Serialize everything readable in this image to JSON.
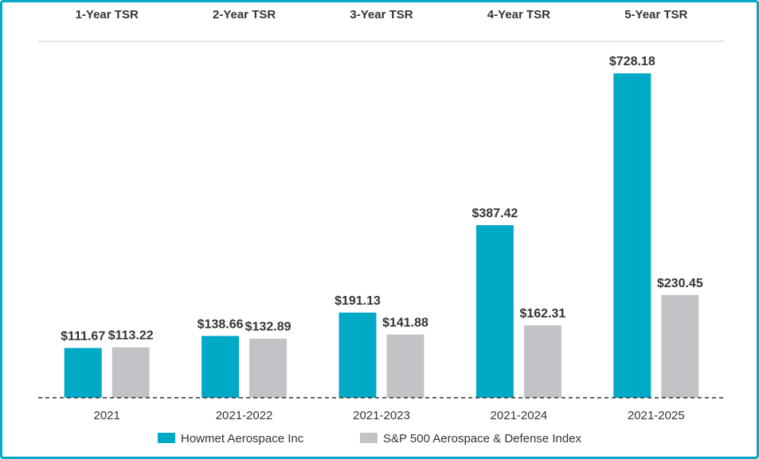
{
  "chart_data": {
    "type": "bar",
    "column_headers": [
      "1-Year TSR",
      "2-Year TSR",
      "3-Year TSR",
      "4-Year TSR",
      "5-Year TSR"
    ],
    "categories": [
      "2021",
      "2021-2022",
      "2021-2023",
      "2021-2024",
      "2021-2025"
    ],
    "series": [
      {
        "name": "Howmet Aerospace Inc",
        "color": "#00a9c6",
        "values": [
          111.67,
          138.66,
          191.13,
          387.42,
          728.18
        ],
        "labels": [
          "$111.67",
          "$138.66",
          "$191.13",
          "$387.42",
          "$728.18"
        ]
      },
      {
        "name": "S&P 500 Aerospace & Defense Index",
        "color": "#c3c2c7",
        "values": [
          113.22,
          132.89,
          141.88,
          162.31,
          230.45
        ],
        "labels": [
          "$113.22",
          "$132.89",
          "$141.88",
          "$162.31",
          "$230.45"
        ]
      }
    ],
    "baseline": 0,
    "baseline_style": "dashed",
    "legend_position": "bottom",
    "grid": false
  }
}
